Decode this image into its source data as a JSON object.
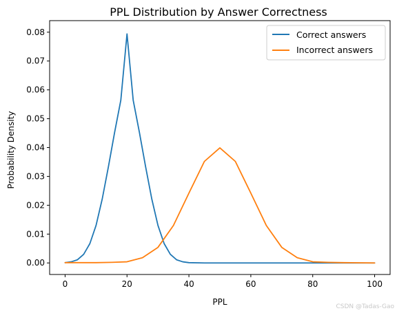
{
  "chart_data": {
    "type": "line",
    "title": "PPL Distribution by Answer Correctness",
    "xlabel": "PPL",
    "ylabel": "Probability Density",
    "xlim": [
      -5,
      105
    ],
    "ylim": [
      -0.004,
      0.084
    ],
    "xticks": [
      0,
      20,
      40,
      60,
      80,
      100
    ],
    "xtick_labels": [
      "0",
      "20",
      "40",
      "60",
      "80",
      "100"
    ],
    "yticks": [
      0.0,
      0.01,
      0.02,
      0.03,
      0.04,
      0.05,
      0.06,
      0.07,
      0.08
    ],
    "ytick_labels": [
      "0.00",
      "0.01",
      "0.02",
      "0.03",
      "0.04",
      "0.05",
      "0.06",
      "0.07",
      "0.08"
    ],
    "grid": false,
    "legend_position": "top-right",
    "series": [
      {
        "name": "Correct answers",
        "color": "#1f77b4",
        "x": [
          0,
          2,
          4,
          6,
          8,
          10,
          12,
          14,
          16,
          18,
          20,
          22,
          24,
          26,
          28,
          30,
          32,
          34,
          36,
          38,
          40,
          45,
          50,
          60,
          70,
          80,
          90,
          100
        ],
        "y": [
          0.0001,
          0.0004,
          0.0011,
          0.003,
          0.0067,
          0.013,
          0.0222,
          0.0334,
          0.0453,
          0.0564,
          0.0794,
          0.0564,
          0.0453,
          0.0334,
          0.0222,
          0.013,
          0.0067,
          0.003,
          0.0011,
          0.0004,
          0.0001,
          0.0,
          0.0,
          0.0,
          0.0,
          0.0,
          0.0,
          0.0
        ]
      },
      {
        "name": "Incorrect answers",
        "color": "#ff7f0e",
        "x": [
          0,
          10,
          15,
          20,
          25,
          30,
          35,
          40,
          45,
          50,
          55,
          60,
          65,
          70,
          75,
          80,
          85,
          90,
          100
        ],
        "y": [
          0.0001,
          0.0001,
          0.0002,
          0.0004,
          0.0018,
          0.0054,
          0.013,
          0.0242,
          0.0352,
          0.0399,
          0.0352,
          0.0242,
          0.013,
          0.0054,
          0.0018,
          0.0004,
          0.0002,
          0.0001,
          0.0
        ]
      }
    ]
  },
  "watermark": "CSDN @Tadas-Gao"
}
